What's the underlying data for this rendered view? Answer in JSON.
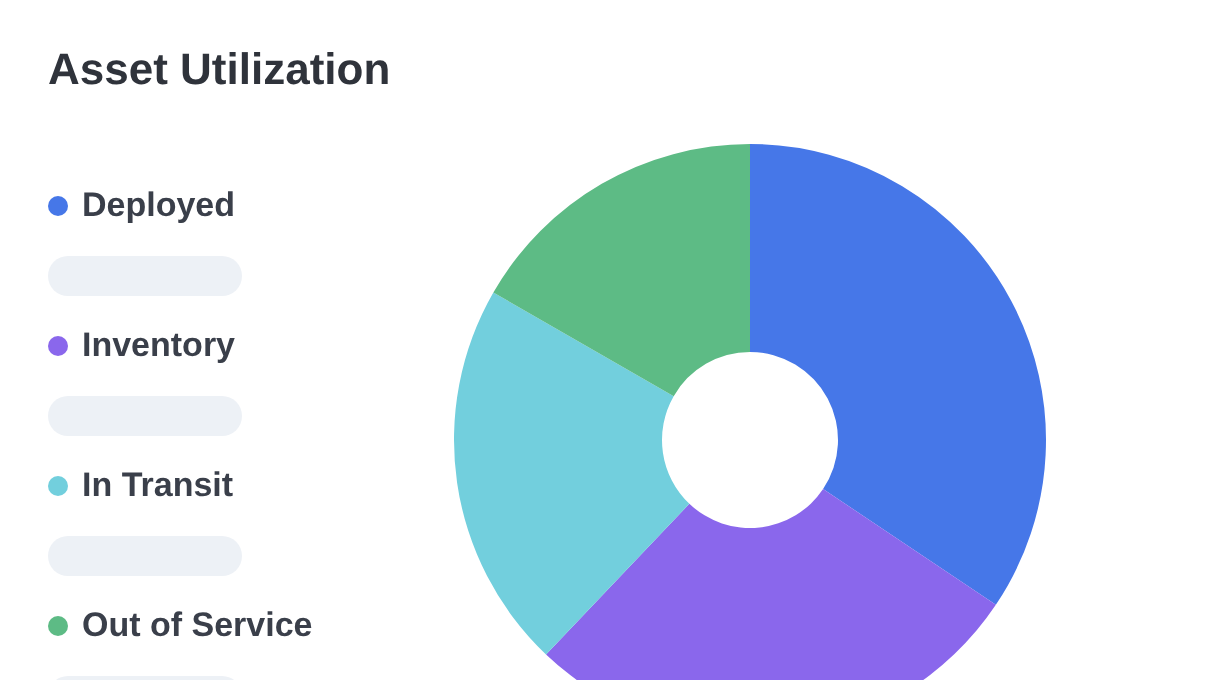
{
  "chart_data": {
    "type": "donut",
    "title": "Asset Utilization",
    "categories": [
      "Deployed",
      "Inventory",
      "In Transit",
      "Out of Service"
    ],
    "values": [
      34.4,
      27.7,
      21.2,
      16.7
    ],
    "colors": [
      "#4677e8",
      "#8a67ec",
      "#72cfdd",
      "#5dbb85"
    ],
    "legend": "left"
  }
}
